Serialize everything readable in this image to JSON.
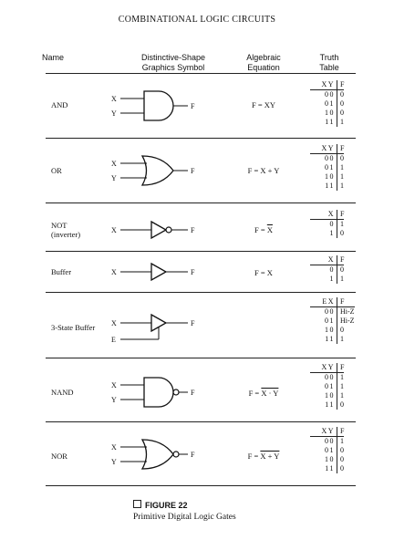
{
  "title": "COMBINATIONAL LOGIC CIRCUITS",
  "headers": {
    "name": "Name",
    "symbol_line1": "Distinctive-Shape",
    "symbol_line2": "Graphics Symbol",
    "equation_line1": "Algebraic",
    "equation_line2": "Equation",
    "truth_line1": "Truth",
    "truth_line2": "Table"
  },
  "signals": {
    "x": "X",
    "y": "Y",
    "f": "F",
    "e": "E"
  },
  "gates": [
    {
      "name": "AND",
      "equation": "F = XY",
      "truth_header": [
        "XY",
        "F"
      ],
      "truth_rows": [
        [
          "00",
          "0"
        ],
        [
          "01",
          "0"
        ],
        [
          "10",
          "0"
        ],
        [
          "11",
          "1"
        ]
      ]
    },
    {
      "name": "OR",
      "equation": "F = X + Y",
      "truth_header": [
        "XY",
        "F"
      ],
      "truth_rows": [
        [
          "00",
          "0"
        ],
        [
          "01",
          "1"
        ],
        [
          "10",
          "1"
        ],
        [
          "11",
          "1"
        ]
      ]
    },
    {
      "name": "NOT",
      "name_line2": "(inverter)",
      "equation_prefix": "F = ",
      "equation_bar": "X",
      "truth_header": [
        "X",
        "F"
      ],
      "truth_rows": [
        [
          "0",
          "1"
        ],
        [
          "1",
          "0"
        ]
      ]
    },
    {
      "name": "Buffer",
      "equation": "F = X",
      "truth_header": [
        "X",
        "F"
      ],
      "truth_rows": [
        [
          "0",
          "0"
        ],
        [
          "1",
          "1"
        ]
      ]
    },
    {
      "name": "3-State Buffer",
      "truth_header": [
        "EX",
        "F"
      ],
      "truth_rows": [
        [
          "00",
          "Hi-Z"
        ],
        [
          "01",
          "Hi-Z"
        ],
        [
          "10",
          "0"
        ],
        [
          "11",
          "1"
        ]
      ]
    },
    {
      "name": "NAND",
      "equation_prefix": "F = ",
      "equation_bar": "X · Y",
      "truth_header": [
        "XY",
        "F"
      ],
      "truth_rows": [
        [
          "00",
          "1"
        ],
        [
          "01",
          "1"
        ],
        [
          "10",
          "1"
        ],
        [
          "11",
          "0"
        ]
      ]
    },
    {
      "name": "NOR",
      "equation_prefix": "F = ",
      "equation_bar": "X + Y",
      "truth_header": [
        "XY",
        "F"
      ],
      "truth_rows": [
        [
          "00",
          "1"
        ],
        [
          "01",
          "0"
        ],
        [
          "10",
          "0"
        ],
        [
          "11",
          "0"
        ]
      ]
    }
  ],
  "caption": {
    "figure": "FIGURE 22",
    "text": "Primitive Digital Logic Gates"
  }
}
